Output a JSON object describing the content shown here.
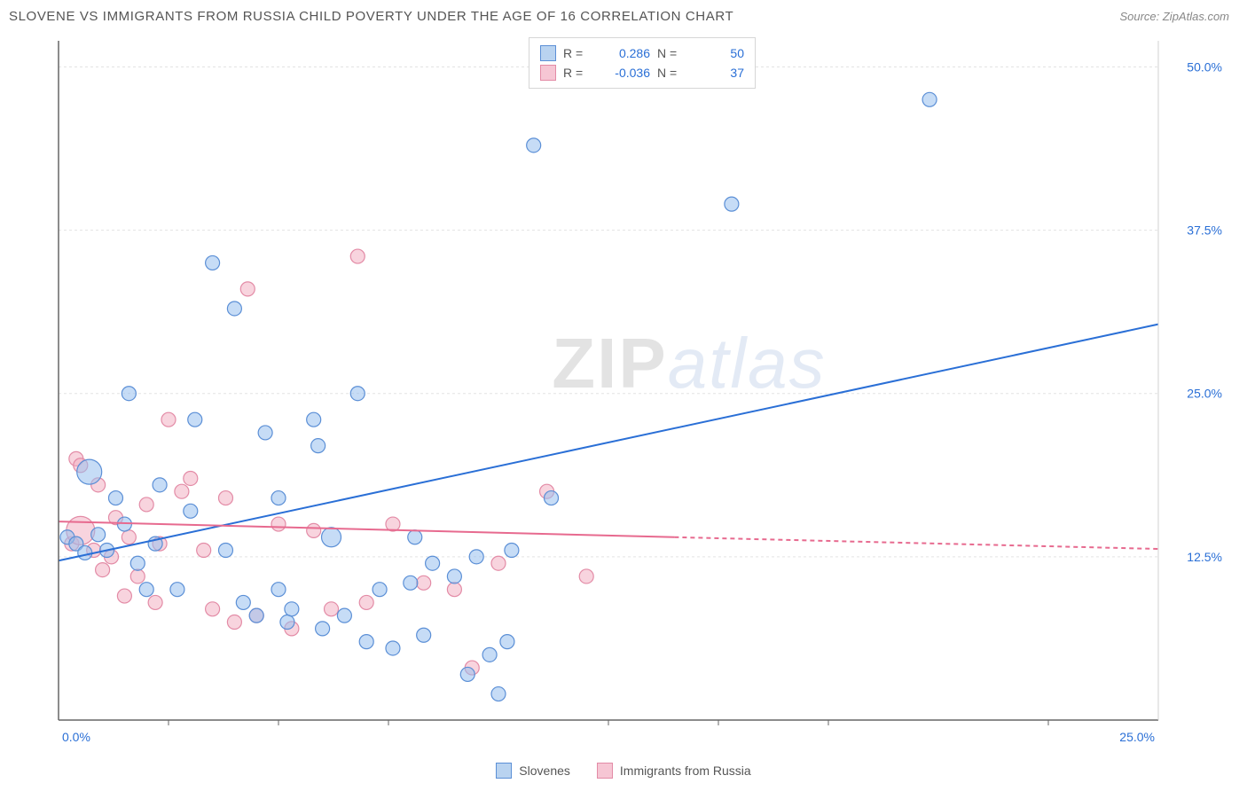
{
  "title": "SLOVENE VS IMMIGRANTS FROM RUSSIA CHILD POVERTY UNDER THE AGE OF 16 CORRELATION CHART",
  "source_label": "Source: ZipAtlas.com",
  "ylabel": "Child Poverty Under the Age of 16",
  "watermark": {
    "part1": "ZIP",
    "part2": "atlas"
  },
  "legend_top": {
    "rows": [
      {
        "swatch_fill": "#b9d3f0",
        "swatch_stroke": "#5b8fd6",
        "r_label": "R =",
        "r_value": "0.286",
        "r_color": "#2a6fd6",
        "n_label": "N =",
        "n_value": "50",
        "n_color": "#2a6fd6"
      },
      {
        "swatch_fill": "#f6c6d4",
        "swatch_stroke": "#e38ba6",
        "r_label": "R =",
        "r_value": "-0.036",
        "r_color": "#2a6fd6",
        "n_label": "N =",
        "n_value": "37",
        "n_color": "#2a6fd6"
      }
    ]
  },
  "legend_bottom": {
    "items": [
      {
        "swatch_fill": "#b9d3f0",
        "swatch_stroke": "#5b8fd6",
        "label": "Slovenes"
      },
      {
        "swatch_fill": "#f6c6d4",
        "swatch_stroke": "#e38ba6",
        "label": "Immigrants from Russia"
      }
    ]
  },
  "chart": {
    "type": "scatter-with-regression",
    "background_color": "#ffffff",
    "border_color": "#666666",
    "grid_color": "#e3e3e3",
    "grid_dash": "3,3",
    "xlim": [
      0,
      25
    ],
    "ylim": [
      0,
      52
    ],
    "x_ticks_minor": [
      2.5,
      5,
      7.5,
      12.5,
      15,
      17.5,
      22.5
    ],
    "x_ticks_labeled": [
      {
        "v": 0,
        "label": "0.0%"
      },
      {
        "v": 25,
        "label": "25.0%"
      }
    ],
    "y_ticks": [
      {
        "v": 12.5,
        "label": "12.5%"
      },
      {
        "v": 25.0,
        "label": "25.0%"
      },
      {
        "v": 37.5,
        "label": "37.5%"
      },
      {
        "v": 50.0,
        "label": "50.0%"
      }
    ],
    "x_label_color": "#2a6fd6",
    "y_label_color": "#2a6fd6",
    "series": [
      {
        "name": "Slovenes",
        "fill": "rgba(151,191,238,0.55)",
        "stroke": "#5b8fd6",
        "marker_radius": 8,
        "regression": {
          "x1": 0,
          "y1": 12.2,
          "x2": 25,
          "y2": 30.3,
          "color": "#2a6fd6",
          "width": 2
        },
        "points": [
          {
            "x": 0.2,
            "y": 14.0
          },
          {
            "x": 0.4,
            "y": 13.5
          },
          {
            "x": 0.6,
            "y": 12.8
          },
          {
            "x": 0.7,
            "y": 19.0,
            "r": 14
          },
          {
            "x": 0.9,
            "y": 14.2
          },
          {
            "x": 1.1,
            "y": 13.0
          },
          {
            "x": 1.3,
            "y": 17.0
          },
          {
            "x": 1.5,
            "y": 15.0
          },
          {
            "x": 1.6,
            "y": 25.0
          },
          {
            "x": 1.8,
            "y": 12.0
          },
          {
            "x": 2.0,
            "y": 10.0
          },
          {
            "x": 2.2,
            "y": 13.5
          },
          {
            "x": 2.3,
            "y": 18.0
          },
          {
            "x": 2.7,
            "y": 10.0
          },
          {
            "x": 3.0,
            "y": 16.0
          },
          {
            "x": 3.1,
            "y": 23.0
          },
          {
            "x": 3.5,
            "y": 35.0
          },
          {
            "x": 3.8,
            "y": 13.0
          },
          {
            "x": 4.0,
            "y": 31.5
          },
          {
            "x": 4.2,
            "y": 9.0
          },
          {
            "x": 4.5,
            "y": 8.0
          },
          {
            "x": 4.7,
            "y": 22.0
          },
          {
            "x": 5.0,
            "y": 10.0
          },
          {
            "x": 5.2,
            "y": 7.5
          },
          {
            "x": 5.3,
            "y": 8.5
          },
          {
            "x": 5.8,
            "y": 23.0
          },
          {
            "x": 5.9,
            "y": 21.0
          },
          {
            "x": 6.0,
            "y": 7.0
          },
          {
            "x": 6.2,
            "y": 14.0,
            "r": 11
          },
          {
            "x": 6.5,
            "y": 8.0
          },
          {
            "x": 6.8,
            "y": 25.0
          },
          {
            "x": 7.0,
            "y": 6.0
          },
          {
            "x": 7.3,
            "y": 10.0
          },
          {
            "x": 7.6,
            "y": 5.5
          },
          {
            "x": 8.0,
            "y": 10.5
          },
          {
            "x": 8.1,
            "y": 14.0
          },
          {
            "x": 8.3,
            "y": 6.5
          },
          {
            "x": 8.5,
            "y": 12.0
          },
          {
            "x": 9.0,
            "y": 11.0
          },
          {
            "x": 9.3,
            "y": 3.5
          },
          {
            "x": 9.5,
            "y": 12.5
          },
          {
            "x": 9.8,
            "y": 5.0
          },
          {
            "x": 10.0,
            "y": 2.0
          },
          {
            "x": 10.2,
            "y": 6.0
          },
          {
            "x": 10.3,
            "y": 13.0
          },
          {
            "x": 10.8,
            "y": 44.0
          },
          {
            "x": 11.2,
            "y": 17.0
          },
          {
            "x": 15.3,
            "y": 39.5
          },
          {
            "x": 19.8,
            "y": 47.5
          },
          {
            "x": 5.0,
            "y": 17.0
          }
        ]
      },
      {
        "name": "Immigrants from Russia",
        "fill": "rgba(243,176,195,0.55)",
        "stroke": "#e38ba6",
        "marker_radius": 8,
        "regression": {
          "x1": 0,
          "y1": 15.2,
          "x2": 14,
          "y2": 14.0,
          "color": "#e76a8f",
          "width": 2,
          "extrapolate": {
            "x2": 25,
            "y2": 13.1,
            "dash": "5,4"
          }
        },
        "points": [
          {
            "x": 0.3,
            "y": 13.5
          },
          {
            "x": 0.4,
            "y": 20.0
          },
          {
            "x": 0.5,
            "y": 19.5
          },
          {
            "x": 0.5,
            "y": 14.5,
            "r": 16
          },
          {
            "x": 0.8,
            "y": 13.0
          },
          {
            "x": 0.9,
            "y": 18.0
          },
          {
            "x": 1.0,
            "y": 11.5
          },
          {
            "x": 1.2,
            "y": 12.5
          },
          {
            "x": 1.3,
            "y": 15.5
          },
          {
            "x": 1.5,
            "y": 9.5
          },
          {
            "x": 1.6,
            "y": 14.0
          },
          {
            "x": 1.8,
            "y": 11.0
          },
          {
            "x": 2.0,
            "y": 16.5
          },
          {
            "x": 2.2,
            "y": 9.0
          },
          {
            "x": 2.3,
            "y": 13.5
          },
          {
            "x": 2.5,
            "y": 23.0
          },
          {
            "x": 2.8,
            "y": 17.5
          },
          {
            "x": 3.0,
            "y": 18.5
          },
          {
            "x": 3.3,
            "y": 13.0
          },
          {
            "x": 3.5,
            "y": 8.5
          },
          {
            "x": 3.8,
            "y": 17.0
          },
          {
            "x": 4.0,
            "y": 7.5
          },
          {
            "x": 4.3,
            "y": 33.0
          },
          {
            "x": 4.5,
            "y": 8.0
          },
          {
            "x": 5.0,
            "y": 15.0
          },
          {
            "x": 5.3,
            "y": 7.0
          },
          {
            "x": 5.8,
            "y": 14.5
          },
          {
            "x": 6.2,
            "y": 8.5
          },
          {
            "x": 6.8,
            "y": 35.5
          },
          {
            "x": 7.0,
            "y": 9.0
          },
          {
            "x": 7.6,
            "y": 15.0
          },
          {
            "x": 8.3,
            "y": 10.5
          },
          {
            "x": 9.0,
            "y": 10.0
          },
          {
            "x": 9.4,
            "y": 4.0
          },
          {
            "x": 10.0,
            "y": 12.0
          },
          {
            "x": 11.1,
            "y": 17.5
          },
          {
            "x": 12.0,
            "y": 11.0
          }
        ]
      }
    ]
  }
}
